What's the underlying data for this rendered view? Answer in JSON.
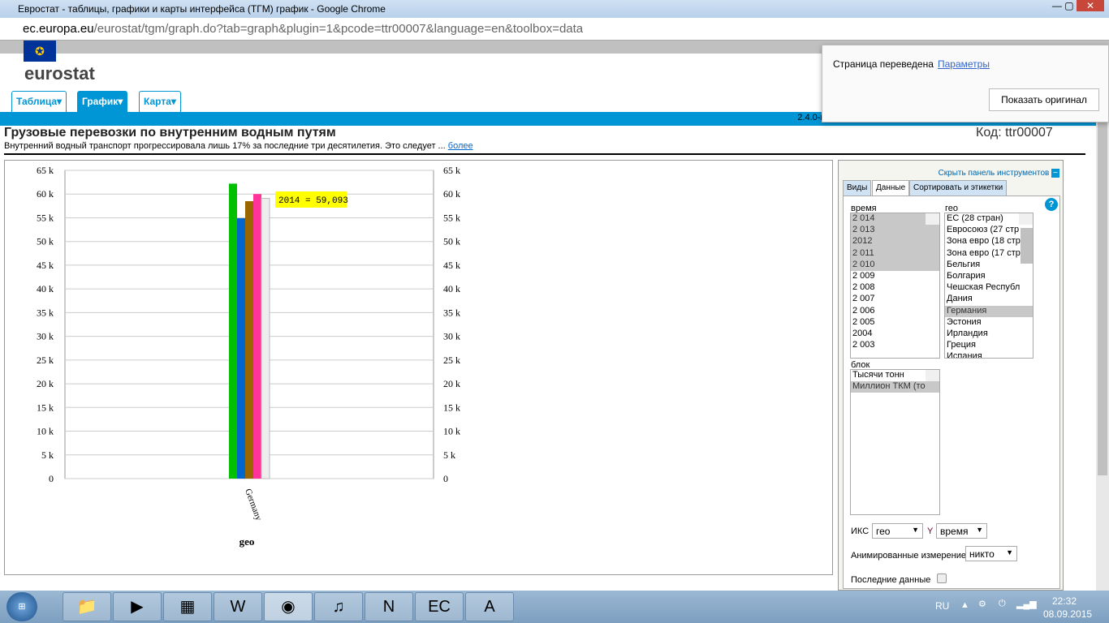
{
  "window": {
    "title": "Евростат - таблицы, графики и карты интерфейса (TГM) график - Google Chrome",
    "url_host": "ec.europa.eu",
    "url_path": "/eurostat/tgm/graph.do?tab=graph&plugin=1&pcode=ttr00007&language=en&toolbox=data"
  },
  "site": {
    "logo": "eurostat",
    "tabs": [
      {
        "label": "Таблица▾"
      },
      {
        "label": "График▾"
      },
      {
        "label": "Карта▾"
      }
    ],
    "version": "2.4.0-r1-2"
  },
  "page": {
    "title": "Грузовые перевозки по внутренним водным путям",
    "subtitle": "Внутренний водный транспорт прогрессировала лишь 17% за последние три десятилетия. Это следует ...",
    "more": "более",
    "code": "Код: ttr00007"
  },
  "translate_popup": {
    "text": "Страница переведена",
    "params_link": "Параметры",
    "show_original": "Показать оригинал"
  },
  "chart_data": {
    "type": "bar",
    "categories": [
      "Germany"
    ],
    "xlabel": "geo",
    "ylim": [
      0,
      65000
    ],
    "yticks": [
      "0",
      "5 k",
      "10 k",
      "15 k",
      "20 k",
      "25 k",
      "30 k",
      "35 k",
      "40 k",
      "45 k",
      "50 k",
      "55 k",
      "60 k",
      "65 k"
    ],
    "series": [
      {
        "values": [
          62200
        ],
        "color": "#00c000"
      },
      {
        "values": [
          54900
        ],
        "color": "#0066cc"
      },
      {
        "values": [
          58500
        ],
        "color": "#996600"
      },
      {
        "values": [
          60000
        ],
        "color": "#ff3399"
      },
      {
        "values": [
          59093
        ],
        "color": "#eeeeee"
      }
    ],
    "tooltip": "2014 = 59,093",
    "grid": true
  },
  "panel": {
    "hide_label": "Скрыть панель инструментов",
    "tabs": [
      "Виды",
      "Данные",
      "Сортировать и этикетки"
    ],
    "time_label": "время",
    "time_items": [
      {
        "t": "2 014",
        "s": true
      },
      {
        "t": "2 013",
        "s": true
      },
      {
        "t": "2012",
        "s": true
      },
      {
        "t": "2 011",
        "s": true
      },
      {
        "t": "2 010",
        "s": true
      },
      {
        "t": "2 009"
      },
      {
        "t": "2 008"
      },
      {
        "t": "2 007"
      },
      {
        "t": "2 006"
      },
      {
        "t": "2 005"
      },
      {
        "t": "2004"
      },
      {
        "t": "2 003"
      }
    ],
    "geo_label": "гео",
    "geo_items": [
      {
        "t": "ЕС (28 стран)"
      },
      {
        "t": "Евросоюз (27 стр"
      },
      {
        "t": "Зона евро (18 стр"
      },
      {
        "t": "Зона евро (17 стр"
      },
      {
        "t": "Бельгия"
      },
      {
        "t": "Болгария"
      },
      {
        "t": "Чешская Республ"
      },
      {
        "t": "Дания"
      },
      {
        "t": "Германия",
        "s": true
      },
      {
        "t": "Эстония"
      },
      {
        "t": "Ирландия"
      },
      {
        "t": "Греция"
      },
      {
        "t": "Испания"
      }
    ],
    "unit_label": "блок",
    "unit_items": [
      {
        "t": "Тысячи тонн"
      },
      {
        "t": "Миллион ТКМ (то",
        "s": true
      }
    ],
    "x_label": "ИКС",
    "x_value": "гео",
    "y_label": "Y",
    "y_value": "время",
    "anim_label": "Анимированные измерение",
    "anim_value": "никто",
    "latest_label": "Последние данные"
  },
  "taskbar": {
    "lang": "RU",
    "time": "22:32",
    "date": "08.09.2015"
  }
}
